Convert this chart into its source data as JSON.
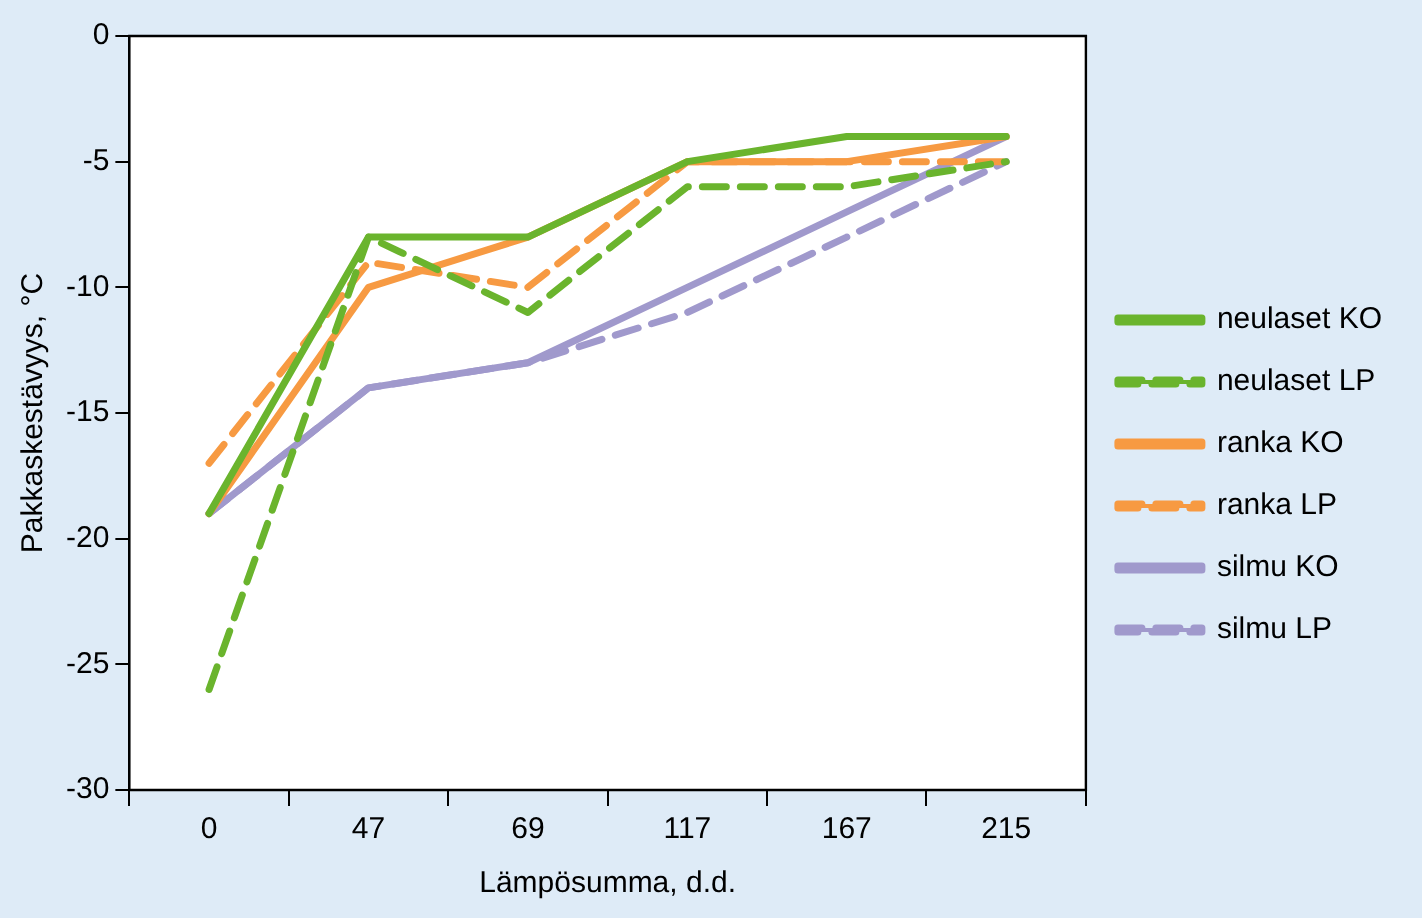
{
  "chart_data": {
    "type": "line",
    "xlabel": "Lämpösumma, d.d.",
    "ylabel": "Pakkaskestävyys, °C",
    "categories": [
      "0",
      "47",
      "69",
      "117",
      "167",
      "215"
    ],
    "series": [
      {
        "name": "neulaset KO",
        "color": "#6ab42d",
        "line_style": "solid",
        "values": [
          -19,
          -8,
          -8,
          -5,
          -4,
          -4
        ]
      },
      {
        "name": "neulaset LP",
        "color": "#6ab42d",
        "line_style": "dashed",
        "values": [
          -26,
          -8,
          -11,
          -6,
          -6,
          -5
        ]
      },
      {
        "name": "ranka KO",
        "color": "#f79a42",
        "line_style": "solid",
        "values": [
          -19,
          -10,
          -8,
          -5,
          -5,
          -4
        ]
      },
      {
        "name": "ranka LP",
        "color": "#f79a42",
        "line_style": "dashed",
        "values": [
          -17,
          -9,
          -10,
          -5,
          -5,
          -5
        ]
      },
      {
        "name": "silmu KO",
        "color": "#a099cc",
        "line_style": "solid",
        "values": [
          -19,
          -14,
          -13,
          -10,
          -7,
          -4
        ]
      },
      {
        "name": "silmu LP",
        "color": "#a099cc",
        "line_style": "dashed",
        "values": [
          -19,
          -14,
          -13,
          -11,
          -8,
          -5
        ]
      }
    ],
    "ylim": [
      -30,
      0
    ],
    "yticks": [
      -30,
      -25,
      -20,
      -15,
      -10,
      -5,
      0
    ],
    "grid": false,
    "legend": "right",
    "marker": "none"
  }
}
